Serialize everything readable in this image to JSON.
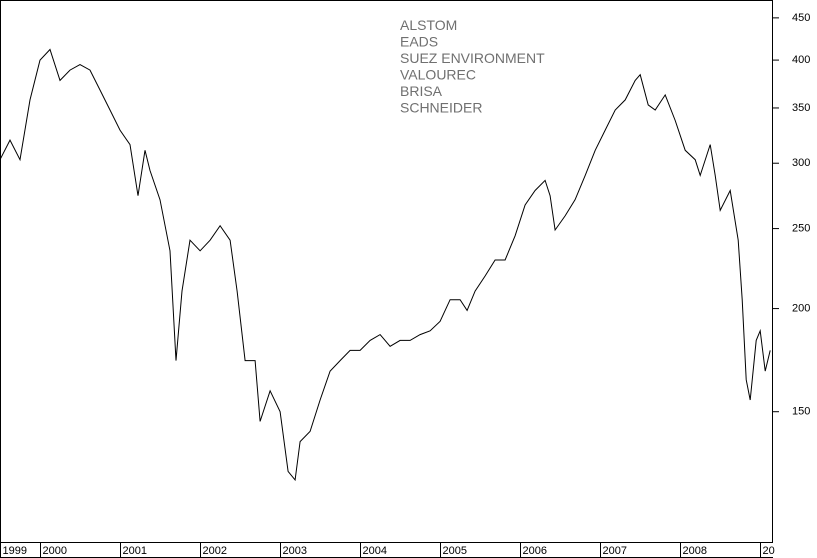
{
  "chart_data": {
    "type": "line",
    "annotations": [
      "ALSTOM",
      "EADS",
      "SUEZ ENVIRONMENT",
      "VALOUREC",
      "BRISA",
      "SCHNEIDER"
    ],
    "x": [
      1999.5,
      1999.625,
      1999.75,
      1999.875,
      2000,
      2000.125,
      2000.25,
      2000.375,
      2000.5,
      2000.625,
      2000.75,
      2000.875,
      2001,
      2001.125,
      2001.225,
      2001.3125,
      2001.375,
      2001.5,
      2001.625,
      2001.7,
      2001.775,
      2001.875,
      2002,
      2002.125,
      2002.25,
      2002.375,
      2002.4625,
      2002.5625,
      2002.6875,
      2002.75,
      2002.875,
      2003,
      2003.1,
      2003.1875,
      2003.25,
      2003.375,
      2003.5,
      2003.625,
      2003.75,
      2003.875,
      2004,
      2004.125,
      2004.25,
      2004.375,
      2004.5,
      2004.625,
      2004.75,
      2004.875,
      2005,
      2005.125,
      2005.25,
      2005.3375,
      2005.4375,
      2005.5625,
      2005.6875,
      2005.8125,
      2005.9375,
      2006.0625,
      2006.1875,
      2006.3125,
      2006.375,
      2006.4375,
      2006.5625,
      2006.6875,
      2006.8125,
      2006.9375,
      2007.0625,
      2007.1875,
      2007.3125,
      2007.4375,
      2007.5,
      2007.6,
      2007.6875,
      2007.8125,
      2007.9375,
      2008.0625,
      2008.1875,
      2008.25,
      2008.375,
      2008.4375,
      2008.5,
      2008.625,
      2008.725,
      2008.775,
      2008.825,
      2008.875,
      2008.95,
      2009,
      2009.0625,
      2009.125
    ],
    "values": [
      303,
      320,
      303,
      358,
      400,
      412,
      378,
      389,
      395,
      389,
      368,
      348,
      329,
      316,
      274,
      311,
      294,
      271,
      235,
      173,
      210,
      242,
      235,
      242,
      252,
      242,
      210,
      173,
      173,
      146,
      159,
      150,
      127,
      124,
      138,
      142,
      155,
      168,
      173,
      178,
      178,
      183,
      186,
      180,
      183,
      183,
      186,
      188,
      193,
      205,
      205,
      199,
      210,
      219,
      229,
      229,
      245,
      267,
      278,
      286,
      274,
      249,
      259,
      271,
      290,
      311,
      329,
      348,
      358,
      378,
      384,
      353,
      348,
      363,
      338,
      311,
      303,
      290,
      316,
      290,
      263,
      278,
      242,
      205,
      164,
      155,
      183,
      188,
      168,
      178
    ],
    "color": "#000000",
    "xlim": [
      1999.5,
      2009.16
    ],
    "xticks": [
      {
        "value": 1999.5,
        "label": "1999"
      },
      2000,
      2001,
      2002,
      2003,
      2004,
      2005,
      2006,
      2007,
      2008,
      {
        "value": 2009,
        "label": "20"
      }
    ],
    "ylim": [
      104,
      473
    ],
    "yticks": [
      150,
      200,
      250,
      300,
      350,
      400,
      450
    ],
    "ylog": true
  }
}
